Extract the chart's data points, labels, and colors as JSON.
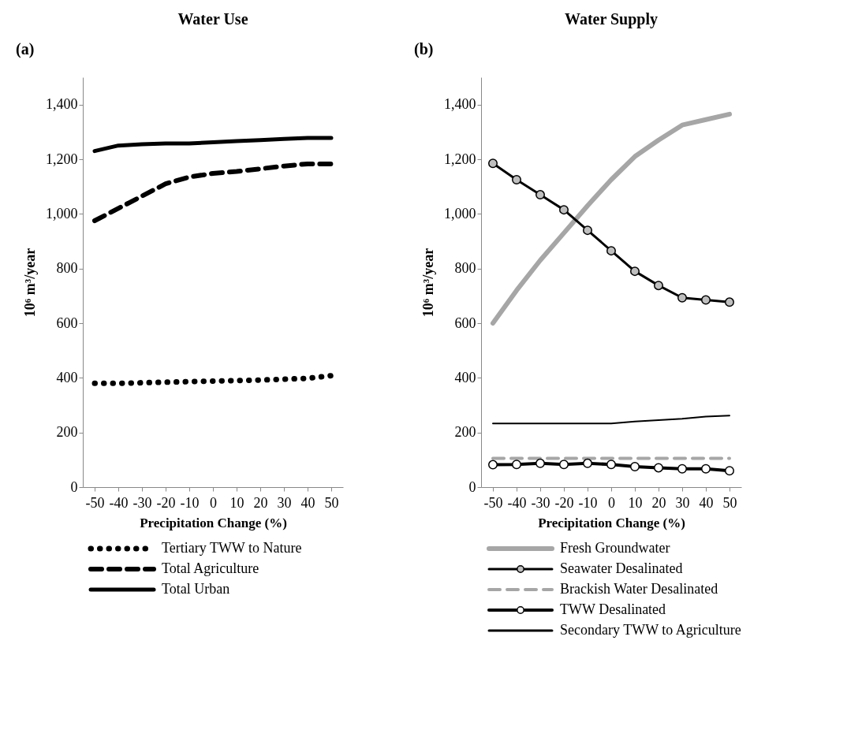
{
  "chart_data": [
    {
      "type": "line",
      "title": "Water Use",
      "annotations": [
        "(a)"
      ],
      "xlabel": "Precipitation Change (%)",
      "ylabel": "10⁶ m³/year",
      "categories": [
        "-50",
        "-40",
        "-30",
        "-20",
        "-10",
        "0",
        "10",
        "20",
        "30",
        "40",
        "50"
      ],
      "ylim": [
        0,
        1500
      ],
      "yticks": [
        0,
        200,
        400,
        600,
        800,
        {
          "value": 1000,
          "label": "1,000"
        },
        {
          "value": 1200,
          "label": "1,200"
        },
        {
          "value": 1400,
          "label": "1,400"
        }
      ],
      "grid": false,
      "legend": "bottom",
      "series": [
        {
          "name": "Tertiary TWW to Nature",
          "color": "#000000",
          "line_style": "dotted",
          "marker": "none",
          "values": [
            380,
            380,
            382,
            384,
            386,
            388,
            390,
            392,
            395,
            398,
            408
          ]
        },
        {
          "name": "Total Agriculture",
          "color": "#000000",
          "line_style": "dashed",
          "marker": "none",
          "values": [
            975,
            1020,
            1065,
            1110,
            1135,
            1148,
            1155,
            1165,
            1175,
            1183,
            1183
          ]
        },
        {
          "name": "Total Urban",
          "color": "#000000",
          "line_style": "solid",
          "marker": "none",
          "values": [
            1230,
            1250,
            1255,
            1258,
            1258,
            1262,
            1266,
            1270,
            1274,
            1278,
            1278
          ]
        }
      ]
    },
    {
      "type": "line",
      "title": "Water Supply",
      "annotations": [
        "(b)"
      ],
      "xlabel": "Precipitation Change (%)",
      "ylabel": "10⁶ m³/year",
      "categories": [
        "-50",
        "-40",
        "-30",
        "-20",
        "-10",
        "0",
        "10",
        "20",
        "30",
        "40",
        "50"
      ],
      "ylim": [
        0,
        1500
      ],
      "yticks": [
        0,
        200,
        400,
        600,
        800,
        {
          "value": 1000,
          "label": "1,000"
        },
        {
          "value": 1200,
          "label": "1,200"
        },
        {
          "value": 1400,
          "label": "1,400"
        }
      ],
      "grid": false,
      "legend": "bottom",
      "series": [
        {
          "name": "Fresh Groundwater",
          "color": "#a6a6a6",
          "line_style": "solid",
          "marker": "none",
          "values": [
            600,
            720,
            830,
            930,
            1030,
            1125,
            1210,
            1270,
            1325,
            1345,
            1365
          ]
        },
        {
          "name": "Seawater Desalinated",
          "color": "#000000",
          "line_style": "solid",
          "marker": "circle",
          "values": [
            1185,
            1125,
            1070,
            1015,
            940,
            865,
            790,
            738,
            693,
            685,
            677
          ]
        },
        {
          "name": "Brackish Water Desalinated",
          "color": "#a6a6a6",
          "line_style": "dashed",
          "marker": "none",
          "values": [
            105,
            105,
            105,
            105,
            105,
            105,
            105,
            105,
            105,
            105,
            105
          ]
        },
        {
          "name": "TWW Desalinated",
          "color": "#000000",
          "line_style": "solid",
          "marker": "circle",
          "values": [
            82,
            83,
            87,
            83,
            87,
            83,
            75,
            71,
            67,
            67,
            60
          ]
        },
        {
          "name": "Secondary TWW to Agriculture",
          "color": "#000000",
          "line_style": "solid",
          "marker": "none",
          "values": [
            233,
            233,
            233,
            233,
            233,
            233,
            240,
            245,
            250,
            258,
            262
          ]
        }
      ]
    }
  ]
}
